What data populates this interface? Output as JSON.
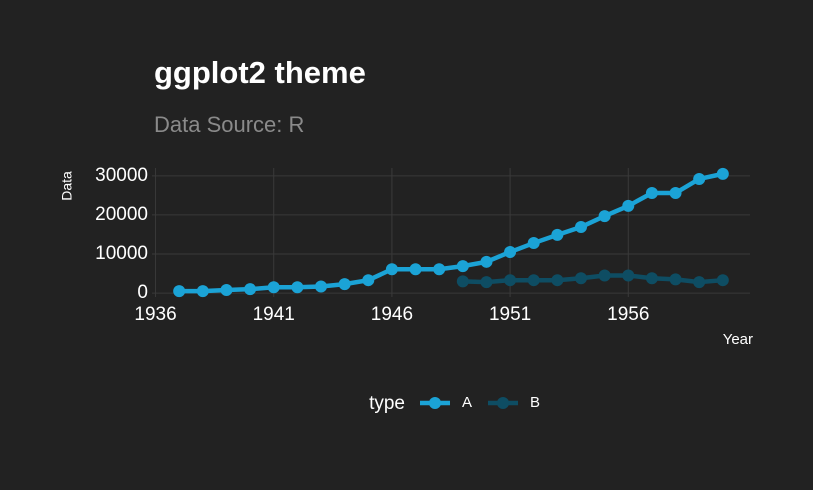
{
  "chart_data": {
    "type": "line",
    "title": "ggplot2 theme",
    "subtitle": "Data Source: R",
    "x_label": "Year",
    "y_label": "Data",
    "x": [
      1937,
      1938,
      1939,
      1940,
      1941,
      1942,
      1943,
      1944,
      1945,
      1946,
      1947,
      1948,
      1949,
      1950,
      1951,
      1952,
      1953,
      1954,
      1955,
      1956,
      1957,
      1958,
      1959,
      1960
    ],
    "series": [
      {
        "name": "A",
        "color": "#1ba3d6",
        "values": [
          500,
          500,
          800,
          1000,
          1500,
          1500,
          1700,
          2300,
          3300,
          6100,
          6100,
          6100,
          6900,
          8000,
          10500,
          12800,
          14900,
          16900,
          19700,
          22300,
          25600,
          25600,
          29200,
          30500
        ]
      },
      {
        "name": "B",
        "color": "#0e4d63",
        "values": [
          null,
          null,
          null,
          null,
          null,
          null,
          null,
          null,
          null,
          null,
          null,
          null,
          3000,
          2800,
          3300,
          3300,
          3300,
          3800,
          4500,
          4500,
          3800,
          3500,
          2800,
          3300
        ]
      }
    ],
    "legend_title": "type",
    "legend_position": "bottom",
    "xlim": [
      1935.85,
      1961.15
    ],
    "xticks": [
      1936,
      1941,
      1946,
      1951,
      1956
    ],
    "ylim": [
      -1000,
      32000
    ],
    "yticks": [
      0,
      10000,
      20000,
      30000
    ],
    "grid": true
  }
}
